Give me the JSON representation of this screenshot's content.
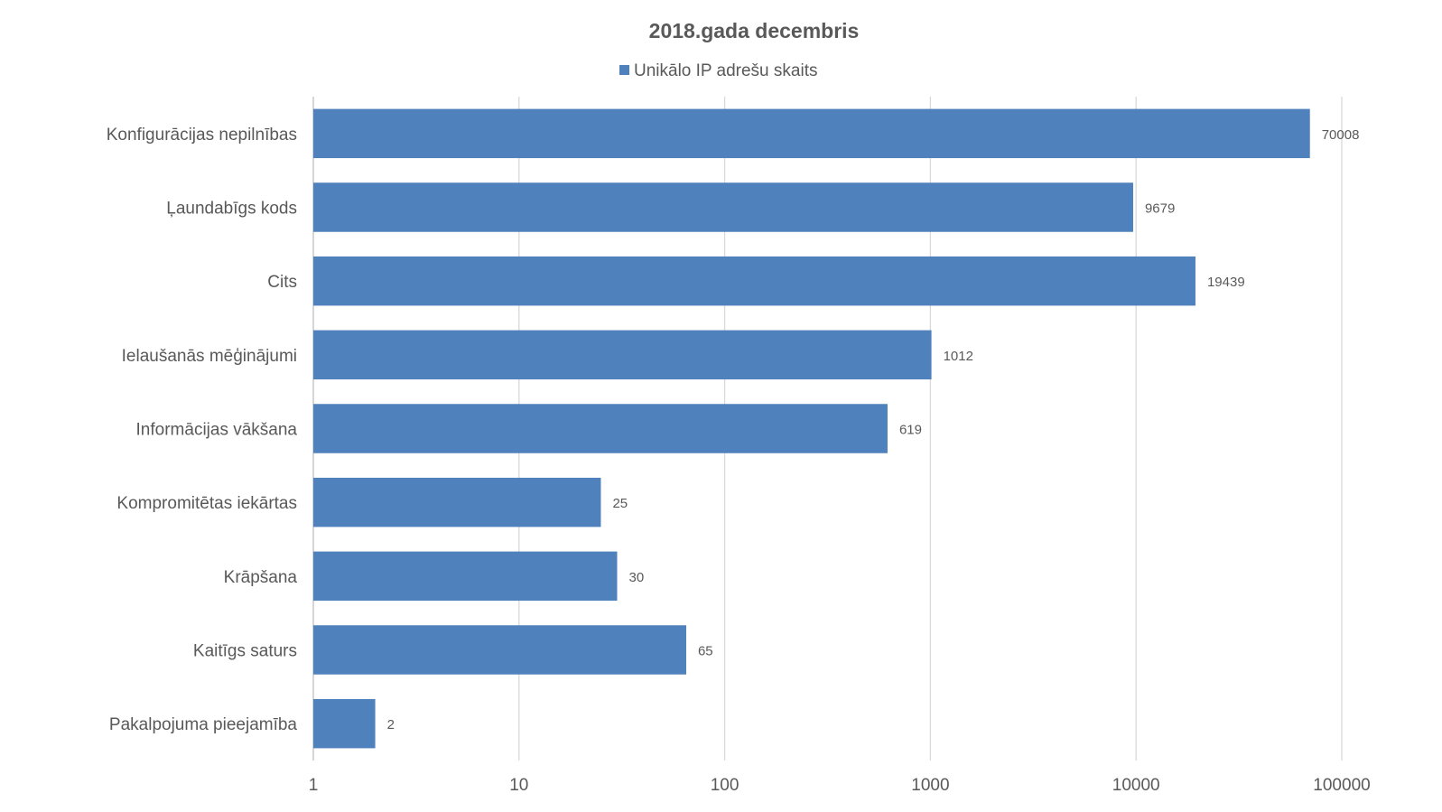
{
  "chart_data": {
    "type": "bar",
    "orientation": "horizontal",
    "title": "2018.gada decembris",
    "x_scale": "log",
    "xlim": [
      1,
      100000
    ],
    "x_ticks": [
      "1",
      "10",
      "100",
      "1000",
      "10000",
      "100000"
    ],
    "grid": true,
    "legend_position": "top",
    "categories": [
      "Konfigurācijas nepilnības",
      "Ļaundabīgs kods",
      "Cits",
      "Ielaušanās mēģinājumi",
      "Informācijas vākšana",
      "Kompromitētas iekārtas",
      "Krāpšana",
      "Kaitīgs saturs",
      "Pakalpojuma pieejamība"
    ],
    "series": [
      {
        "name": "Unikālo IP adrešu skaits",
        "color": "#4f81bd",
        "values": [
          70008,
          9679,
          19439,
          1012,
          619,
          25,
          30,
          65,
          2
        ]
      }
    ]
  }
}
